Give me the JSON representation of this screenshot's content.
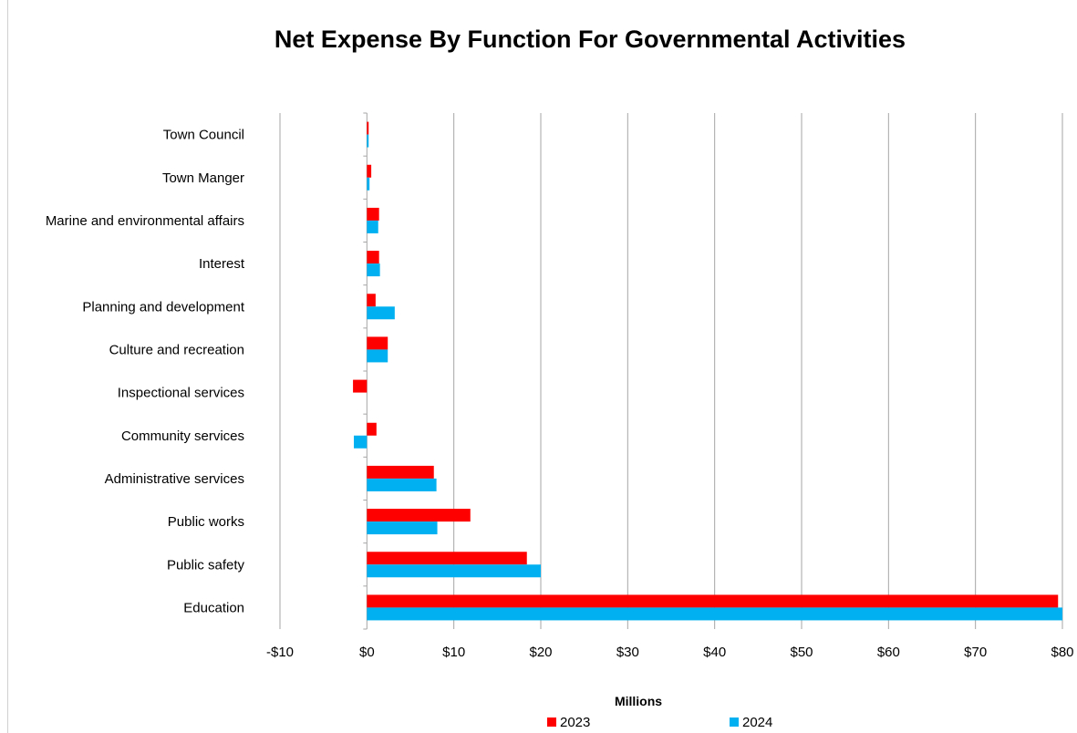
{
  "chart_data": {
    "type": "bar",
    "orientation": "horizontal",
    "title": "Net Expense By Function For Governmental Activities",
    "xlabel": "Millions",
    "ylabel": "",
    "categories": [
      "Town Council",
      "Town Manger",
      "Marine and environmental affairs",
      "Interest",
      "Planning and development",
      "Culture and recreation",
      "Inspectional services",
      "Community services",
      "Administrative services",
      "Public works",
      "Public safety",
      "Education"
    ],
    "series": [
      {
        "name": "2023",
        "color": "#ff0000",
        "values": [
          0.2,
          0.5,
          1.4,
          1.4,
          1.0,
          2.4,
          -1.6,
          1.1,
          7.7,
          11.9,
          18.4,
          79.5
        ]
      },
      {
        "name": "2024",
        "color": "#00b0f0",
        "values": [
          0.2,
          0.3,
          1.3,
          1.5,
          3.2,
          2.4,
          0.0,
          -1.5,
          8.0,
          8.1,
          20.0,
          80.0
        ]
      }
    ],
    "xlim": [
      -10,
      80
    ],
    "ticks": [
      -10,
      0,
      10,
      20,
      30,
      40,
      50,
      60,
      70,
      80
    ],
    "tick_labels": [
      "-$10",
      "$0",
      "$10",
      "$20",
      "$30",
      "$40",
      "$50",
      "$60",
      "$70",
      "$80"
    ],
    "grid": true,
    "legend_position": "bottom"
  }
}
